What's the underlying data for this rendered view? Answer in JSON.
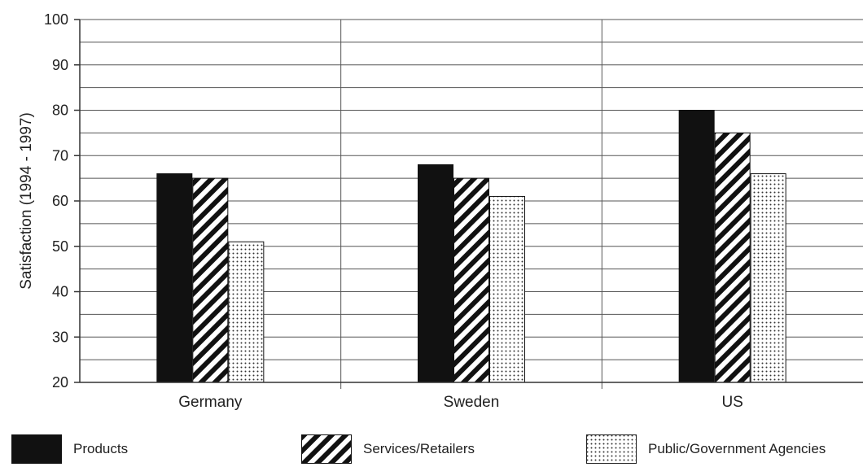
{
  "chart_data": {
    "type": "bar",
    "title": "",
    "xlabel": "",
    "ylabel": "Satisfaction (1994 - 1997)",
    "ylim": [
      20,
      100
    ],
    "yticks": [
      20,
      30,
      40,
      50,
      60,
      70,
      80,
      90,
      100
    ],
    "grid": "horizontal minor every 5, vertical separators between categories",
    "legend_position": "bottom",
    "categories": [
      "Germany",
      "Sweden",
      "US"
    ],
    "series": [
      {
        "name": "Products",
        "values": [
          66,
          68,
          80
        ],
        "fill": "solid-black"
      },
      {
        "name": "Services/Retailers",
        "values": [
          65,
          65,
          75
        ],
        "fill": "diagonal-stripes"
      },
      {
        "name": "Public/Government Agencies",
        "values": [
          51,
          61,
          66
        ],
        "fill": "dots"
      }
    ]
  }
}
